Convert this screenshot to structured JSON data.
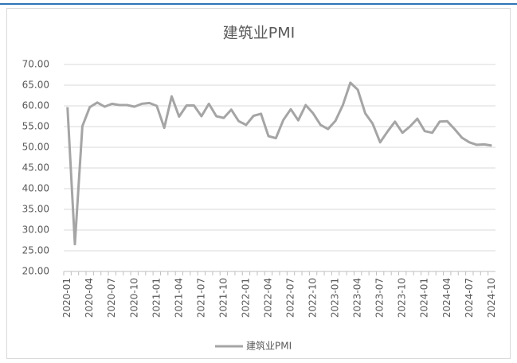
{
  "chart_data": {
    "type": "line",
    "title": "建筑业PMI",
    "categories": [
      "2020-01",
      null,
      null,
      "2020-04",
      null,
      null,
      "2020-07",
      null,
      null,
      "2020-10",
      null,
      null,
      "2021-01",
      null,
      null,
      "2021-04",
      null,
      null,
      "2021-07",
      null,
      null,
      "2021-10",
      null,
      null,
      "2022-01",
      null,
      null,
      "2022-04",
      null,
      null,
      "2022-07",
      null,
      null,
      "2022-10",
      null,
      null,
      "2023-01",
      null,
      null,
      "2023-04",
      null,
      null,
      "2023-07",
      null,
      null,
      "2023-10",
      null,
      null,
      "2024-01",
      null,
      null,
      "2024-04",
      null,
      null,
      "2024-07",
      null,
      null,
      "2024-10"
    ],
    "series": [
      {
        "name": "建筑业PMI",
        "color": "#a5a5a5",
        "values": [
          59.7,
          26.6,
          55.1,
          59.7,
          60.8,
          59.8,
          60.5,
          60.2,
          60.2,
          59.8,
          60.5,
          60.7,
          60.0,
          54.7,
          62.3,
          57.4,
          60.1,
          60.1,
          57.5,
          60.5,
          57.5,
          57.1,
          59.1,
          56.3,
          55.4,
          57.6,
          58.1,
          52.7,
          52.2,
          56.6,
          59.2,
          56.5,
          60.2,
          58.2,
          55.4,
          54.4,
          56.4,
          60.2,
          65.6,
          63.9,
          58.2,
          55.7,
          51.2,
          53.8,
          56.2,
          53.5,
          55.0,
          56.9,
          53.9,
          53.5,
          56.2,
          56.3,
          54.4,
          52.3,
          51.2,
          50.6,
          50.7,
          50.4
        ]
      }
    ],
    "ylim": [
      20,
      70
    ],
    "yticks": [
      {
        "value": 20,
        "label": "20.00"
      },
      {
        "value": 25,
        "label": "25.00"
      },
      {
        "value": 30,
        "label": "30.00"
      },
      {
        "value": 35,
        "label": "35.00"
      },
      {
        "value": 40,
        "label": "40.00"
      },
      {
        "value": 45,
        "label": "45.00"
      },
      {
        "value": 50,
        "label": "50.00"
      },
      {
        "value": 55,
        "label": "55.00"
      },
      {
        "value": 60,
        "label": "60.00"
      },
      {
        "value": 65,
        "label": "65.00"
      },
      {
        "value": 70,
        "label": "70.00"
      }
    ],
    "grid": true,
    "legend": "bottom"
  }
}
